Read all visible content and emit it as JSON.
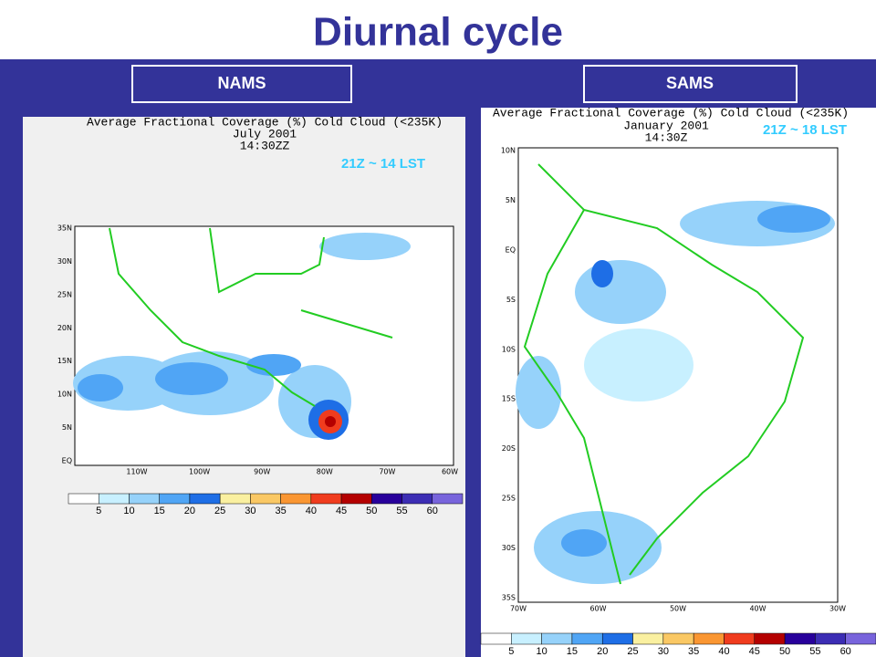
{
  "title": "Diurnal cycle",
  "panels": [
    {
      "label": "NAMS",
      "map_title": [
        "Average Fractional Coverage (%) Cold Cloud (<235K)",
        "July 2001",
        "14:30ZZ"
      ],
      "annotation": "21Z ~ 14 LST",
      "lat_labels": [
        "35N",
        "30N",
        "25N",
        "20N",
        "15N",
        "10N",
        "5N",
        "EQ"
      ],
      "lon_labels": [
        "110W",
        "100W",
        "90W",
        "80W",
        "70W",
        "60W"
      ],
      "colorbar": {
        "ticks": [
          5,
          10,
          15,
          20,
          25,
          30,
          35,
          40,
          45,
          50,
          55,
          60
        ],
        "colors": [
          "#ffffff",
          "#c8f0ff",
          "#96d2fa",
          "#50a5f5",
          "#1e6ee6",
          "#faf0a0",
          "#fac864",
          "#fa9632",
          "#f03c1e",
          "#b40000",
          "#28009b",
          "#3c2db4",
          "#7864dc"
        ]
      }
    },
    {
      "label": "SAMS",
      "map_title": [
        "Average Fractional Coverage (%) Cold Cloud (<235K)",
        "January 2001",
        "14:30Z"
      ],
      "annotation": "21Z ~ 18 LST",
      "lat_labels": [
        "10N",
        "5N",
        "EQ",
        "5S",
        "10S",
        "15S",
        "20S",
        "25S",
        "30S",
        "35S"
      ],
      "lon_labels": [
        "70W",
        "60W",
        "50W",
        "40W",
        "30W"
      ],
      "colorbar": {
        "ticks": [
          5,
          10,
          15,
          20,
          25,
          30,
          35,
          40,
          45,
          50,
          55,
          60
        ],
        "colors": [
          "#ffffff",
          "#c8f0ff",
          "#96d2fa",
          "#50a5f5",
          "#1e6ee6",
          "#faf0a0",
          "#fac864",
          "#fa9632",
          "#f03c1e",
          "#b40000",
          "#28009b",
          "#3c2db4",
          "#7864dc"
        ]
      }
    }
  ]
}
